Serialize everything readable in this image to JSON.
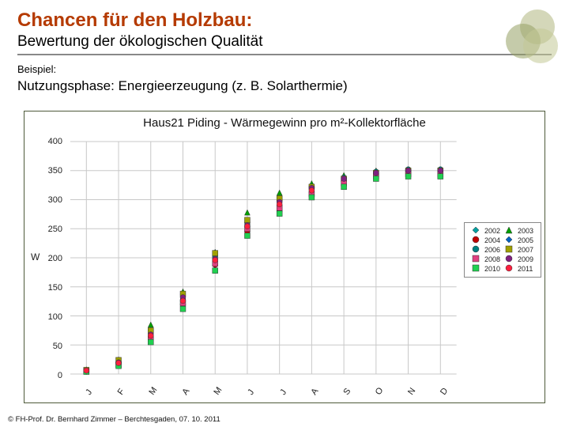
{
  "header": {
    "title": "Chancen für den Holzbau:",
    "title_color": "#b53a00",
    "subtitle": "Bewertung der ökologischen Qualität",
    "subtitle_color": "#000000"
  },
  "body": {
    "example_label": "Beispiel:",
    "example_text": "Nutzungsphase: Energieerzeugung (z. B. Solarthermie)"
  },
  "footer": {
    "text": "© FH-Prof. Dr. Bernhard Zimmer  –  Berchtesgaden, 07. 10. 2011"
  },
  "chart": {
    "type": "scatter",
    "title": "Haus21 Piding - Wärmegewinn pro m²-Kollektorfläche",
    "ylabel": "W",
    "title_fontsize": 15,
    "label_fontsize": 12,
    "tick_fontsize": 11,
    "background_color": "#ffffff",
    "grid_color": "#c8c8c8",
    "border_color": "#4e5a3a",
    "ylim": [
      0,
      400
    ],
    "yticks": [
      0,
      50,
      100,
      150,
      200,
      250,
      300,
      350,
      400
    ],
    "x_categories": [
      "J",
      "F",
      "M",
      "A",
      "M",
      "J",
      "J",
      "A",
      "S",
      "O",
      "N",
      "D"
    ],
    "series_order": [
      "2002",
      "2003",
      "2004",
      "2005",
      "2006",
      "2007",
      "2008",
      "2009",
      "2010",
      "2011"
    ],
    "series_defs": {
      "2002": {
        "color": "#00a0a0",
        "shape": "diamond"
      },
      "2003": {
        "color": "#00a000",
        "shape": "triangle"
      },
      "2004": {
        "color": "#c00000",
        "shape": "circle"
      },
      "2005": {
        "color": "#0060c0",
        "shape": "diamond"
      },
      "2006": {
        "color": "#008080",
        "shape": "circle"
      },
      "2007": {
        "color": "#a0a000",
        "shape": "square"
      },
      "2008": {
        "color": "#e04080",
        "shape": "square"
      },
      "2009": {
        "color": "#802080",
        "shape": "circle"
      },
      "2010": {
        "color": "#20d050",
        "shape": "square"
      },
      "2011": {
        "color": "#ff203f",
        "shape": "circle"
      }
    },
    "data": {
      "2002": [
        5,
        15,
        62,
        115,
        200,
        262,
        295,
        320,
        335,
        348,
        352,
        352
      ],
      "2003": [
        8,
        25,
        85,
        142,
        210,
        278,
        312,
        328,
        342,
        350,
        352,
        352
      ],
      "2004": [
        5,
        18,
        58,
        120,
        188,
        245,
        280,
        312,
        332,
        345,
        350,
        350
      ],
      "2005": [
        6,
        22,
        70,
        130,
        195,
        258,
        298,
        320,
        335,
        345,
        350,
        350
      ],
      "2006": [
        4,
        20,
        65,
        128,
        202,
        260,
        300,
        322,
        338,
        348,
        352,
        352
      ],
      "2007": [
        7,
        24,
        75,
        138,
        208,
        265,
        302,
        322,
        336,
        346,
        350,
        350
      ],
      "2008": [
        5,
        16,
        60,
        122,
        190,
        250,
        286,
        310,
        328,
        340,
        344,
        344
      ],
      "2009": [
        6,
        20,
        68,
        132,
        198,
        256,
        296,
        320,
        336,
        346,
        350,
        350
      ],
      "2010": [
        4,
        14,
        55,
        112,
        178,
        238,
        276,
        304,
        322,
        336,
        340,
        340
      ],
      "2011": [
        6,
        19,
        66,
        126,
        196,
        254,
        292,
        316,
        null,
        null,
        null,
        null
      ]
    },
    "marker_size": 7,
    "grid": true
  }
}
